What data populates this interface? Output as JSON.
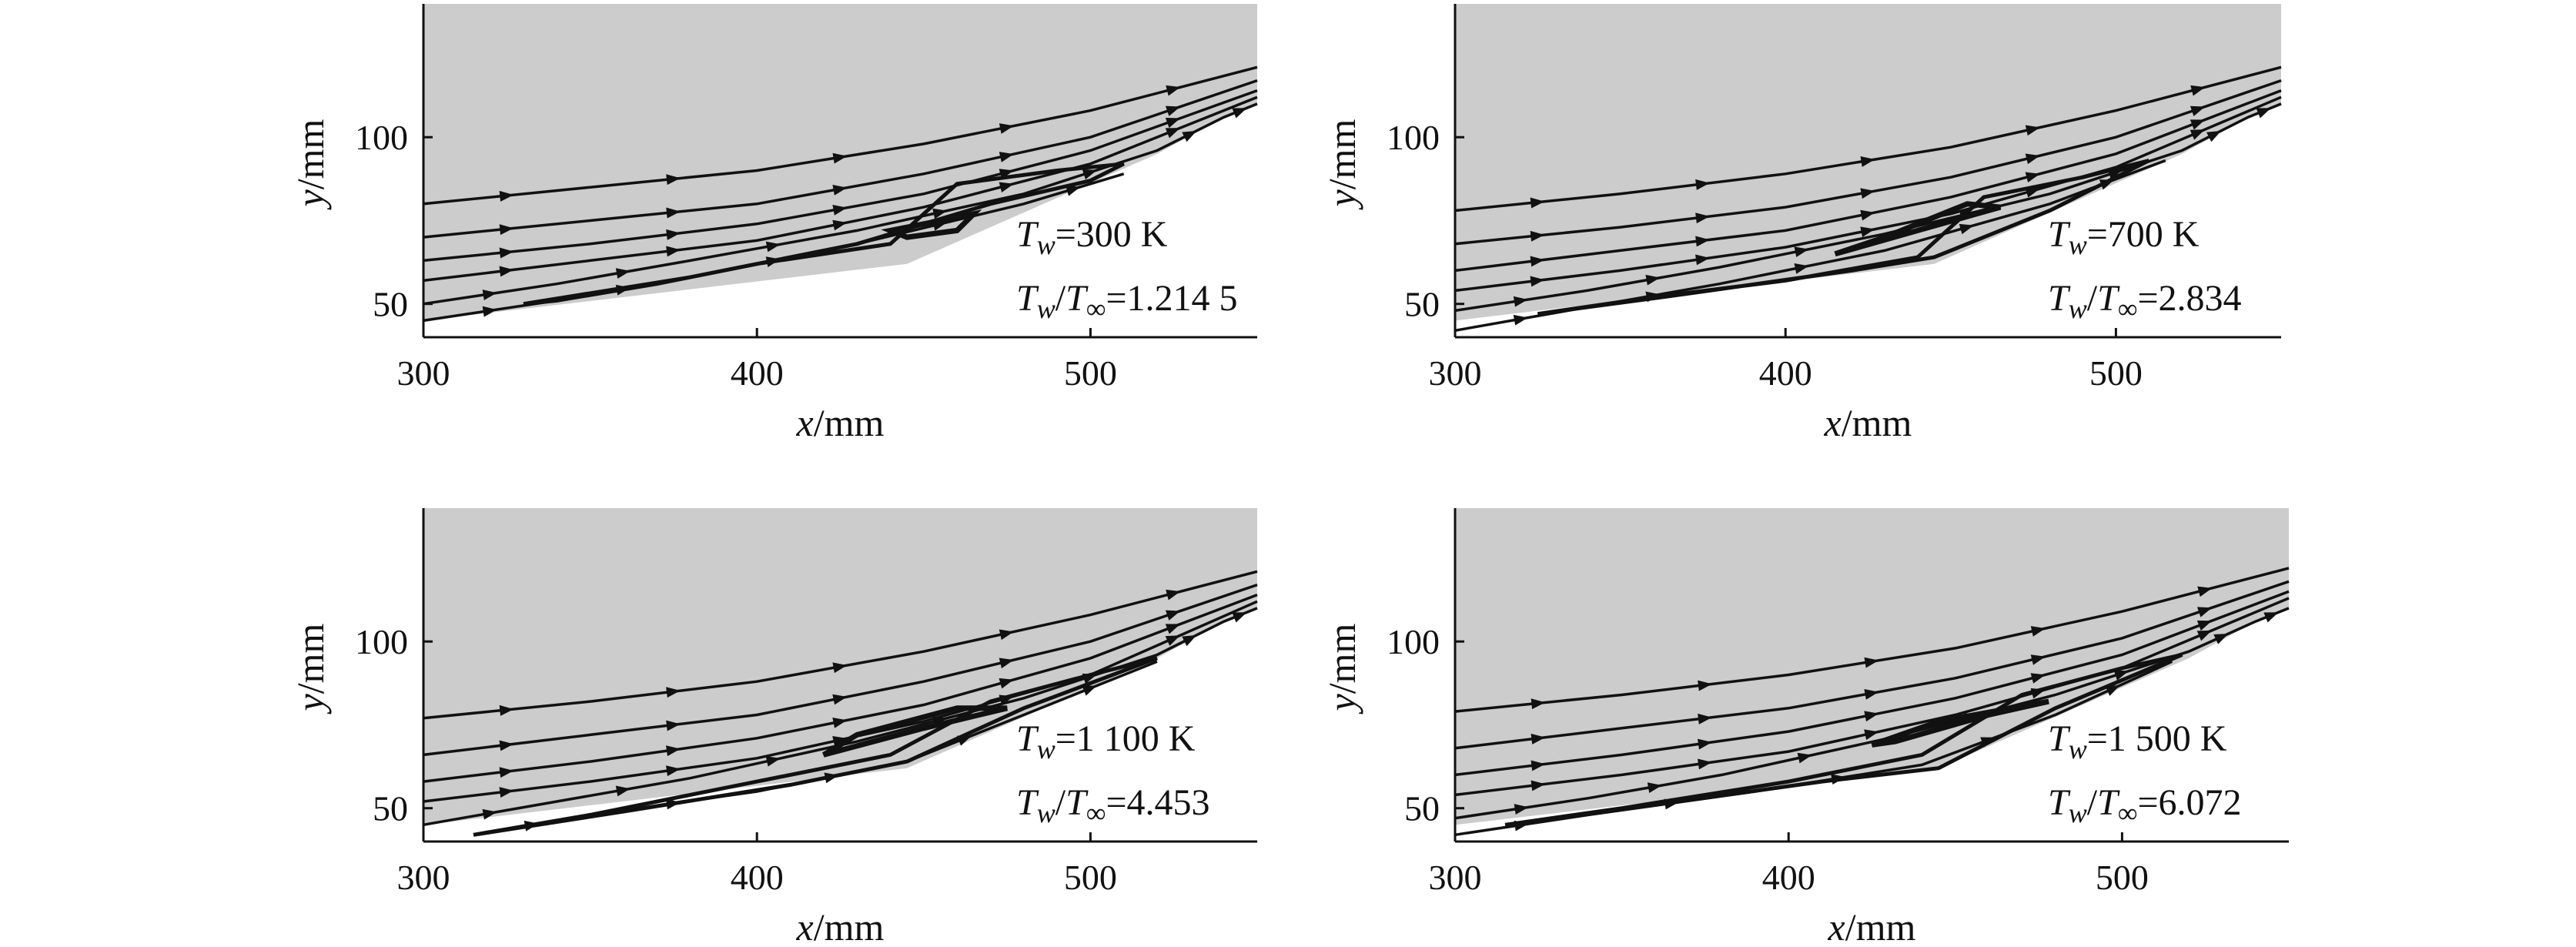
{
  "chart_data": [
    {
      "type": "streamline",
      "xlabel_var": "x",
      "xlabel_unit": "/mm",
      "ylabel_var": "y",
      "ylabel_unit": "/mm",
      "xlim": [
        300,
        550
      ],
      "ylim": [
        40,
        140
      ],
      "xticks": [
        "300",
        "400",
        "500"
      ],
      "yticks": [
        "50",
        "100"
      ],
      "annotation": {
        "line1": {
          "T": "T",
          "sub": "w",
          "rest": "=300 K"
        },
        "line2": {
          "T1": "T",
          "sub1": "w",
          "mid": "/",
          "T2": "T",
          "sub2": "∞",
          "rest": "=1.214 5"
        }
      },
      "streamlines": [
        [
          [
            300,
            80
          ],
          [
            350,
            85
          ],
          [
            400,
            90
          ],
          [
            450,
            98
          ],
          [
            500,
            108
          ],
          [
            550,
            121
          ]
        ],
        [
          [
            300,
            70
          ],
          [
            350,
            75
          ],
          [
            400,
            80
          ],
          [
            450,
            89
          ],
          [
            500,
            100
          ],
          [
            550,
            117
          ]
        ],
        [
          [
            300,
            63
          ],
          [
            350,
            68
          ],
          [
            400,
            74
          ],
          [
            450,
            83
          ],
          [
            500,
            96
          ],
          [
            550,
            114
          ]
        ],
        [
          [
            300,
            57
          ],
          [
            350,
            63
          ],
          [
            400,
            69
          ],
          [
            450,
            79
          ],
          [
            500,
            92
          ],
          [
            550,
            112
          ]
        ],
        [
          [
            300,
            50
          ],
          [
            340,
            56
          ],
          [
            380,
            63
          ],
          [
            430,
            72
          ],
          [
            480,
            83
          ],
          [
            520,
            96
          ],
          [
            540,
            106
          ],
          [
            550,
            110
          ]
        ],
        [
          [
            300,
            45
          ],
          [
            340,
            51
          ],
          [
            380,
            58
          ],
          [
            430,
            68
          ],
          [
            480,
            80
          ],
          [
            510,
            89
          ]
        ]
      ],
      "separation_bubble": [
        [
          330,
          50
        ],
        [
          380,
          58
        ],
        [
          430,
          68
        ],
        [
          470,
          80
        ],
        [
          500,
          87
        ],
        [
          510,
          92
        ],
        [
          490,
          90
        ],
        [
          460,
          86
        ],
        [
          440,
          68
        ],
        [
          400,
          62
        ],
        [
          370,
          56
        ],
        [
          340,
          51
        ]
      ],
      "vortex": [
        [
          440,
          72
        ],
        [
          455,
          75
        ],
        [
          465,
          77
        ],
        [
          460,
          72
        ],
        [
          445,
          70
        ]
      ]
    },
    {
      "type": "streamline",
      "xlabel_var": "x",
      "xlabel_unit": "/mm",
      "ylabel_var": "y",
      "ylabel_unit": "/mm",
      "xlim": [
        300,
        550
      ],
      "ylim": [
        40,
        140
      ],
      "xticks": [
        "300",
        "400",
        "500"
      ],
      "yticks": [
        "50",
        "100"
      ],
      "annotation": {
        "line1": {
          "T": "T",
          "sub": "w",
          "rest": "=700 K"
        },
        "line2": {
          "T1": "T",
          "sub1": "w",
          "mid": "/",
          "T2": "T",
          "sub2": "∞",
          "rest": "=2.834"
        }
      },
      "streamlines": [
        [
          [
            300,
            78
          ],
          [
            350,
            83
          ],
          [
            400,
            89
          ],
          [
            450,
            97
          ],
          [
            500,
            108
          ],
          [
            550,
            121
          ]
        ],
        [
          [
            300,
            68
          ],
          [
            350,
            73
          ],
          [
            400,
            79
          ],
          [
            450,
            88
          ],
          [
            500,
            100
          ],
          [
            550,
            117
          ]
        ],
        [
          [
            300,
            60
          ],
          [
            350,
            66
          ],
          [
            400,
            72
          ],
          [
            450,
            82
          ],
          [
            500,
            95
          ],
          [
            550,
            114
          ]
        ],
        [
          [
            300,
            54
          ],
          [
            350,
            60
          ],
          [
            400,
            67
          ],
          [
            450,
            77
          ],
          [
            500,
            91
          ],
          [
            550,
            112
          ]
        ],
        [
          [
            300,
            48
          ],
          [
            340,
            54
          ],
          [
            380,
            61
          ],
          [
            430,
            71
          ],
          [
            480,
            83
          ],
          [
            520,
            96
          ],
          [
            540,
            106
          ],
          [
            550,
            110
          ]
        ],
        [
          [
            300,
            42
          ],
          [
            340,
            49
          ],
          [
            380,
            56
          ],
          [
            430,
            66
          ],
          [
            480,
            80
          ],
          [
            515,
            93
          ]
        ]
      ],
      "separation_bubble": [
        [
          325,
          47
        ],
        [
          370,
          53
        ],
        [
          420,
          60
        ],
        [
          445,
          64
        ],
        [
          480,
          78
        ],
        [
          510,
          93
        ],
        [
          490,
          88
        ],
        [
          460,
          82
        ],
        [
          440,
          64
        ],
        [
          400,
          57
        ],
        [
          360,
          52
        ]
      ],
      "vortex": [
        [
          415,
          65
        ],
        [
          440,
          72
        ],
        [
          465,
          79
        ],
        [
          455,
          80
        ],
        [
          430,
          70
        ]
      ]
    },
    {
      "type": "streamline",
      "xlabel_var": "x",
      "xlabel_unit": "/mm",
      "ylabel_var": "y",
      "ylabel_unit": "/mm",
      "xlim": [
        300,
        550
      ],
      "ylim": [
        40,
        140
      ],
      "xticks": [
        "300",
        "400",
        "500"
      ],
      "yticks": [
        "50",
        "100"
      ],
      "annotation": {
        "line1": {
          "T": "T",
          "sub": "w",
          "rest": "=1 100 K"
        },
        "line2": {
          "T1": "T",
          "sub1": "w",
          "mid": "/",
          "T2": "T",
          "sub2": "∞",
          "rest": "=4.453"
        }
      },
      "streamlines": [
        [
          [
            300,
            77
          ],
          [
            350,
            82
          ],
          [
            400,
            88
          ],
          [
            450,
            97
          ],
          [
            500,
            108
          ],
          [
            550,
            121
          ]
        ],
        [
          [
            300,
            66
          ],
          [
            350,
            72
          ],
          [
            400,
            78
          ],
          [
            450,
            88
          ],
          [
            500,
            100
          ],
          [
            550,
            117
          ]
        ],
        [
          [
            300,
            58
          ],
          [
            350,
            64
          ],
          [
            400,
            71
          ],
          [
            450,
            81
          ],
          [
            500,
            95
          ],
          [
            550,
            114
          ]
        ],
        [
          [
            300,
            52
          ],
          [
            350,
            58
          ],
          [
            400,
            65
          ],
          [
            450,
            76
          ],
          [
            500,
            90
          ],
          [
            550,
            112
          ]
        ],
        [
          [
            300,
            45
          ],
          [
            340,
            52
          ],
          [
            380,
            59
          ],
          [
            430,
            70
          ],
          [
            480,
            83
          ],
          [
            520,
            96
          ],
          [
            540,
            106
          ],
          [
            550,
            110
          ]
        ],
        [
          [
            315,
            42
          ],
          [
            350,
            48
          ],
          [
            400,
            55
          ],
          [
            445,
            64
          ],
          [
            480,
            78
          ],
          [
            520,
            94
          ]
        ]
      ],
      "separation_bubble": [
        [
          315,
          42
        ],
        [
          360,
          49
        ],
        [
          410,
          57
        ],
        [
          445,
          64
        ],
        [
          480,
          80
        ],
        [
          520,
          95
        ],
        [
          500,
          90
        ],
        [
          470,
          82
        ],
        [
          440,
          66
        ],
        [
          400,
          58
        ],
        [
          350,
          48
        ]
      ],
      "vortex": [
        [
          420,
          66
        ],
        [
          450,
          74
        ],
        [
          475,
          80
        ],
        [
          460,
          80
        ],
        [
          430,
          72
        ]
      ]
    },
    {
      "type": "streamline",
      "xlabel_var": "x",
      "xlabel_unit": "/mm",
      "ylabel_var": "y",
      "ylabel_unit": "/mm",
      "xlim": [
        300,
        550
      ],
      "ylim": [
        40,
        140
      ],
      "xticks": [
        "300",
        "400",
        "500"
      ],
      "yticks": [
        "50",
        "100"
      ],
      "annotation": {
        "line1": {
          "T": "T",
          "sub": "w",
          "rest": "=1 500 K"
        },
        "line2": {
          "T1": "T",
          "sub1": "w",
          "mid": "/",
          "T2": "T",
          "sub2": "∞",
          "rest": "=6.072"
        }
      },
      "streamlines": [
        [
          [
            300,
            79
          ],
          [
            350,
            84
          ],
          [
            400,
            90
          ],
          [
            450,
            98
          ],
          [
            500,
            109
          ],
          [
            550,
            122
          ]
        ],
        [
          [
            300,
            68
          ],
          [
            350,
            74
          ],
          [
            400,
            80
          ],
          [
            450,
            89
          ],
          [
            500,
            101
          ],
          [
            550,
            118
          ]
        ],
        [
          [
            300,
            60
          ],
          [
            350,
            66
          ],
          [
            400,
            73
          ],
          [
            450,
            83
          ],
          [
            500,
            96
          ],
          [
            550,
            115
          ]
        ],
        [
          [
            300,
            54
          ],
          [
            350,
            60
          ],
          [
            400,
            67
          ],
          [
            450,
            78
          ],
          [
            500,
            92
          ],
          [
            550,
            113
          ]
        ],
        [
          [
            300,
            47
          ],
          [
            340,
            53
          ],
          [
            380,
            60
          ],
          [
            430,
            71
          ],
          [
            480,
            84
          ],
          [
            520,
            97
          ],
          [
            540,
            106
          ],
          [
            550,
            110
          ]
        ],
        [
          [
            300,
            42
          ],
          [
            340,
            48
          ],
          [
            390,
            55
          ],
          [
            440,
            63
          ],
          [
            480,
            78
          ],
          [
            515,
            94
          ]
        ]
      ],
      "separation_bubble": [
        [
          315,
          45
        ],
        [
          360,
          51
        ],
        [
          410,
          58
        ],
        [
          445,
          62
        ],
        [
          480,
          80
        ],
        [
          518,
          96
        ],
        [
          500,
          92
        ],
        [
          470,
          84
        ],
        [
          440,
          66
        ],
        [
          400,
          58
        ],
        [
          350,
          50
        ]
      ],
      "vortex": [
        [
          425,
          69
        ],
        [
          445,
          76
        ],
        [
          478,
          82
        ],
        [
          460,
          78
        ],
        [
          432,
          70
        ]
      ]
    }
  ],
  "colors": {
    "background": "#ffffff",
    "panel_fill": "#cccccc",
    "line": "#111111"
  }
}
